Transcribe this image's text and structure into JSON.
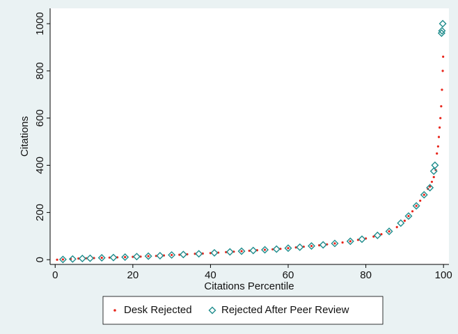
{
  "chart_data": {
    "type": "scatter",
    "x_label": "Citations Percentile",
    "y_label": "Citations",
    "xlim": [
      -1.3,
      101.4
    ],
    "ylim": [
      -20,
      1065
    ],
    "xticks": [
      0,
      20,
      40,
      60,
      80,
      100
    ],
    "yticks": [
      0,
      200,
      400,
      600,
      800,
      1000
    ],
    "grid": false,
    "legend": "bottom",
    "series": [
      {
        "name": "Desk Rejected",
        "color": "#e8261c",
        "marker": "dot",
        "x": [
          0.5,
          2,
          4,
          6,
          8,
          10,
          12,
          14,
          16,
          18,
          20,
          22,
          24,
          26,
          28,
          30,
          32,
          34,
          36,
          38,
          40,
          42,
          44,
          46,
          48,
          50,
          52,
          54,
          56,
          58,
          60,
          62,
          64,
          66,
          68,
          70,
          72,
          74,
          76,
          78,
          80,
          82,
          84,
          86,
          88,
          90,
          91,
          92,
          93,
          94,
          95,
          96,
          96.5,
          97,
          97.5,
          98,
          98.3,
          98.6,
          98.8,
          99,
          99.2,
          99.4,
          99.6,
          99.8,
          99.9
        ],
        "values": [
          0,
          1,
          3,
          5,
          6,
          7,
          8,
          9,
          10,
          11,
          12,
          13,
          15,
          16,
          18,
          20,
          21,
          23,
          25,
          26,
          28,
          30,
          32,
          34,
          36,
          38,
          40,
          42,
          44,
          46,
          49,
          52,
          55,
          58,
          61,
          65,
          69,
          73,
          78,
          84,
          90,
          98,
          108,
          120,
          138,
          165,
          185,
          205,
          228,
          250,
          275,
          300,
          310,
          330,
          350,
          380,
          450,
          480,
          520,
          560,
          600,
          650,
          720,
          800,
          860
        ]
      },
      {
        "name": "Rejected After Peer Review",
        "color": "#1e8c8c",
        "marker": "diamond",
        "x": [
          2,
          4.5,
          7,
          9,
          12,
          15,
          18,
          21,
          24,
          27,
          30,
          33,
          37,
          41,
          45,
          48,
          51,
          54,
          57,
          60,
          63,
          66,
          69,
          72,
          76,
          79,
          83,
          86,
          89,
          91,
          93,
          95,
          96.5,
          97.5,
          97.8,
          99.5,
          99.6,
          99.8
        ],
        "values": [
          1,
          3,
          5,
          6,
          8,
          9,
          11,
          13,
          15,
          17,
          20,
          22,
          25,
          29,
          33,
          36,
          39,
          42,
          45,
          49,
          53,
          58,
          63,
          69,
          78,
          87,
          103,
          120,
          155,
          185,
          228,
          275,
          305,
          375,
          400,
          960,
          970,
          1000
        ]
      }
    ]
  }
}
